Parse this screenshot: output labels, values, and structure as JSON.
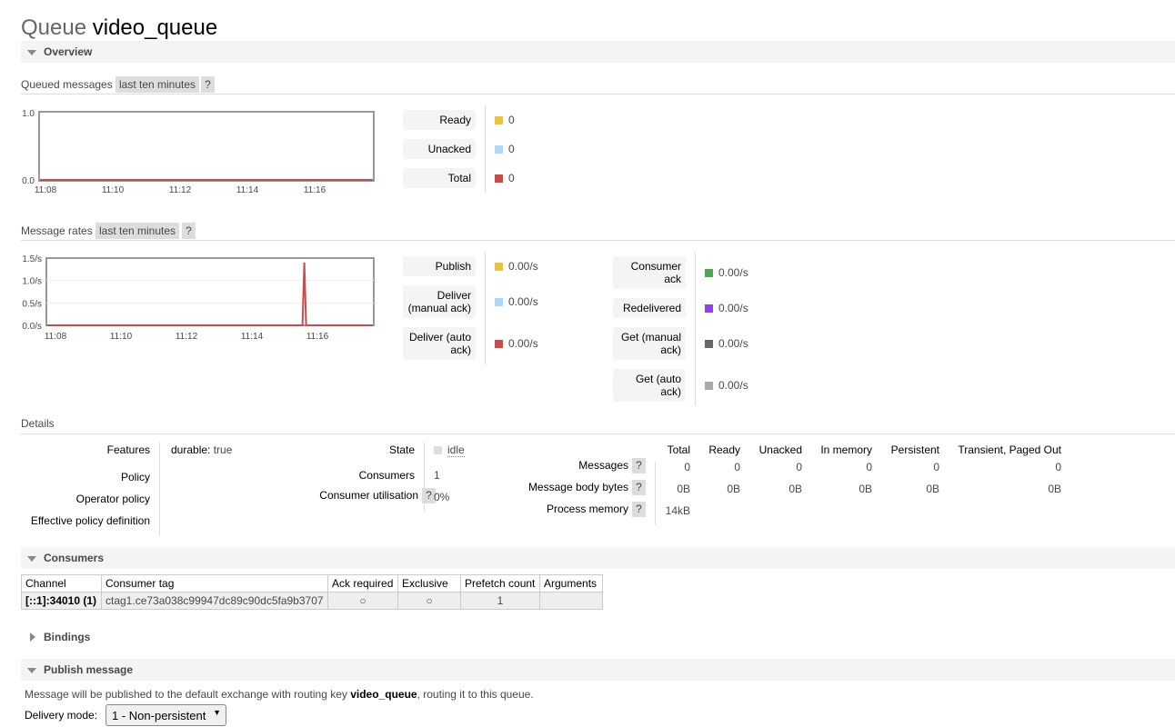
{
  "title": {
    "prefix": "Queue",
    "name": "video_queue"
  },
  "sections": {
    "overview": "Overview",
    "consumers": "Consumers",
    "bindings": "Bindings",
    "publish": "Publish message"
  },
  "queued": {
    "label": "Queued messages",
    "range": "last ten minutes",
    "help": "?",
    "legend": [
      {
        "label": "Ready",
        "value": "0",
        "color": "#edc240"
      },
      {
        "label": "Unacked",
        "value": "0",
        "color": "#afd8f8"
      },
      {
        "label": "Total",
        "value": "0",
        "color": "#cb4b4b"
      }
    ]
  },
  "rates": {
    "label": "Message rates",
    "range": "last ten minutes",
    "help": "?",
    "legend_left": [
      {
        "label": "Publish",
        "value": "0.00/s",
        "color": "#edc240"
      },
      {
        "label": "Deliver (manual ack)",
        "value": "0.00/s",
        "color": "#afd8f8"
      },
      {
        "label": "Deliver (auto ack)",
        "value": "0.00/s",
        "color": "#cb4b4b"
      }
    ],
    "legend_right": [
      {
        "label": "Consumer ack",
        "value": "0.00/s",
        "color": "#4da74d"
      },
      {
        "label": "Redelivered",
        "value": "0.00/s",
        "color": "#9440ed"
      },
      {
        "label": "Get (manual ack)",
        "value": "0.00/s",
        "color": "#666666"
      },
      {
        "label": "Get (auto ack)",
        "value": "0.00/s",
        "color": "#aaaaaa"
      }
    ]
  },
  "chart_data": [
    {
      "type": "line",
      "x": [
        "11:08",
        "11:10",
        "11:12",
        "11:14",
        "11:16"
      ],
      "series": [
        {
          "values": [
            0,
            0,
            0,
            0,
            0
          ]
        }
      ],
      "ylim": [
        0,
        1.0
      ],
      "yticks": [
        "1.0",
        "0.0"
      ],
      "xticks": [
        "11:08",
        "11:10",
        "11:12",
        "11:14",
        "11:16"
      ]
    },
    {
      "type": "line",
      "x": [
        "11:08",
        "11:10",
        "11:12",
        "11:14",
        "11:15.6",
        "11:16"
      ],
      "series": [
        {
          "values": [
            0,
            0,
            0,
            0,
            1.4,
            0
          ]
        }
      ],
      "ylim": [
        0,
        1.5
      ],
      "yticks": [
        "1.5/s",
        "1.0/s",
        "0.5/s",
        "0.0/s"
      ],
      "xticks": [
        "11:08",
        "11:10",
        "11:12",
        "11:14",
        "11:16"
      ]
    }
  ],
  "details": {
    "label": "Details",
    "features_label": "Features",
    "features_key": "durable:",
    "features_value": "true",
    "policy_label": "Policy",
    "operator_policy_label": "Operator policy",
    "effective_policy_label": "Effective policy definition",
    "state_label": "State",
    "state_value": "idle",
    "consumers_label": "Consumers",
    "consumers_value": "1",
    "utilisation_label": "Consumer utilisation",
    "utilisation_value": "0%",
    "help": "?",
    "stats_columns": [
      "Total",
      "Ready",
      "Unacked",
      "In memory",
      "Persistent",
      "Transient, Paged Out"
    ],
    "messages_label": "Messages",
    "messages_values": [
      "0",
      "0",
      "0",
      "0",
      "0",
      "0"
    ],
    "body_bytes_label": "Message body bytes",
    "body_bytes_values": [
      "0B",
      "0B",
      "0B",
      "0B",
      "0B",
      "0B"
    ],
    "process_memory_label": "Process memory",
    "process_memory_value": "14kB"
  },
  "consumers_table": {
    "columns": [
      "Channel",
      "Consumer tag",
      "Ack required",
      "Exclusive",
      "Prefetch count",
      "Arguments"
    ],
    "rows": [
      {
        "channel": "[::1]:34010 (1)",
        "tag": "ctag1.ce73a038c99947dc89c90dc5fa9b3707",
        "ack": "○",
        "exclusive": "○",
        "prefetch": "1",
        "arguments": ""
      }
    ]
  },
  "publish": {
    "text_before": "Message will be published to the default exchange with routing key ",
    "routing_key": "video_queue",
    "text_after": ", routing it to this queue.",
    "delivery_mode_label": "Delivery mode:",
    "delivery_mode_value": "1 - Non-persistent"
  }
}
